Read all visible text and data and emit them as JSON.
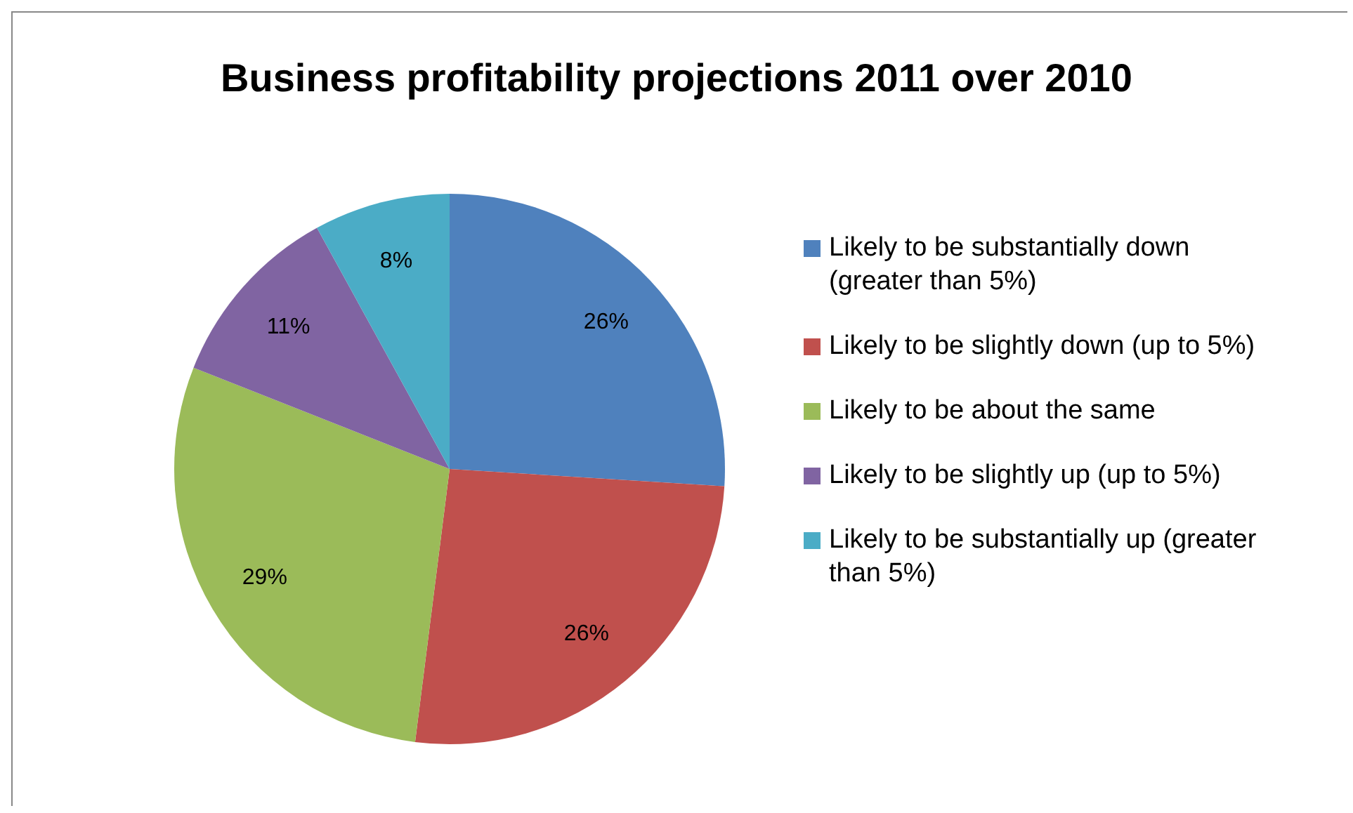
{
  "chart_data": {
    "type": "pie",
    "title": "Business profitability projections 2011 over 2010",
    "categories": [
      "Likely to be substantially down (greater than 5%)",
      "Likely to be slightly down (up to 5%)",
      "Likely to be about the same",
      "Likely to be slightly up (up to 5%)",
      "Likely to be substantially up (greater than 5%)"
    ],
    "values": [
      26,
      26,
      29,
      11,
      8
    ],
    "colors": [
      "#4f81bd",
      "#c0504d",
      "#9bbb59",
      "#8064a2",
      "#4bacc6"
    ],
    "value_labels": [
      "26%",
      "26%",
      "29%",
      "11%",
      "8%"
    ],
    "legend": "right"
  }
}
